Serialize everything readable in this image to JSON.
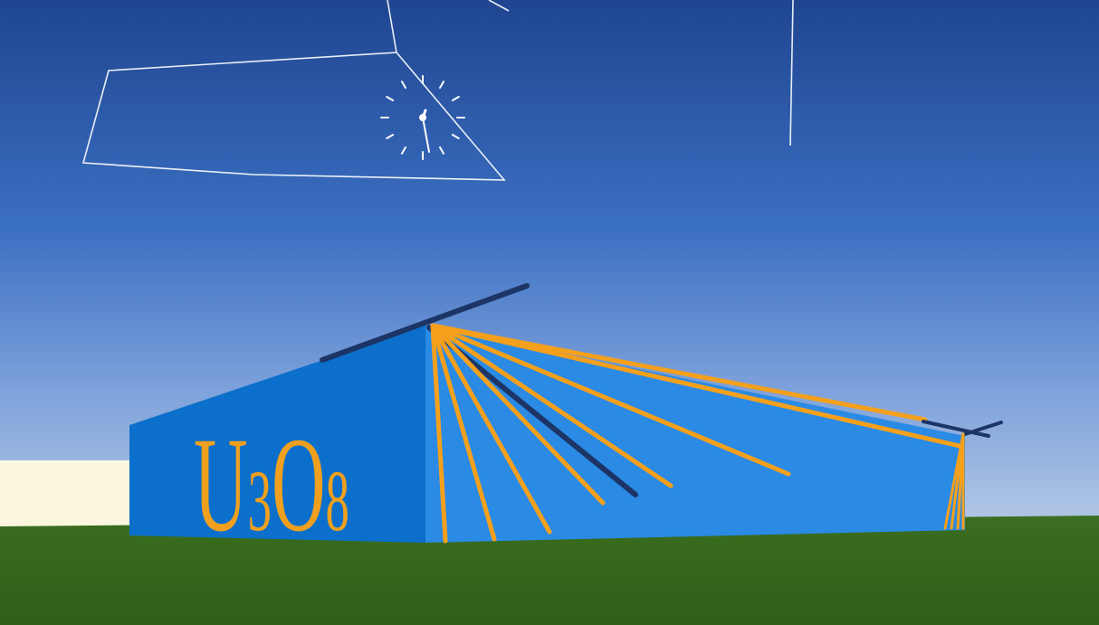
{
  "scene": {
    "title": "",
    "building_label": {
      "prefix": "U",
      "subscript_1": "3",
      "mid": "O",
      "subscript_2": "8"
    },
    "clock": {
      "hour_marks": 12
    },
    "palette": {
      "sky_top": "#1f4590",
      "sky_horizon": "#b8cce6",
      "ground": "#386a1e",
      "wall_front": "#0b6fcb",
      "wall_side": "#2a8ae4",
      "roof_beam": "#1c3566",
      "rays": "#f5a01c",
      "outline": "#ffffff",
      "far_building": "#fbf6de"
    }
  }
}
